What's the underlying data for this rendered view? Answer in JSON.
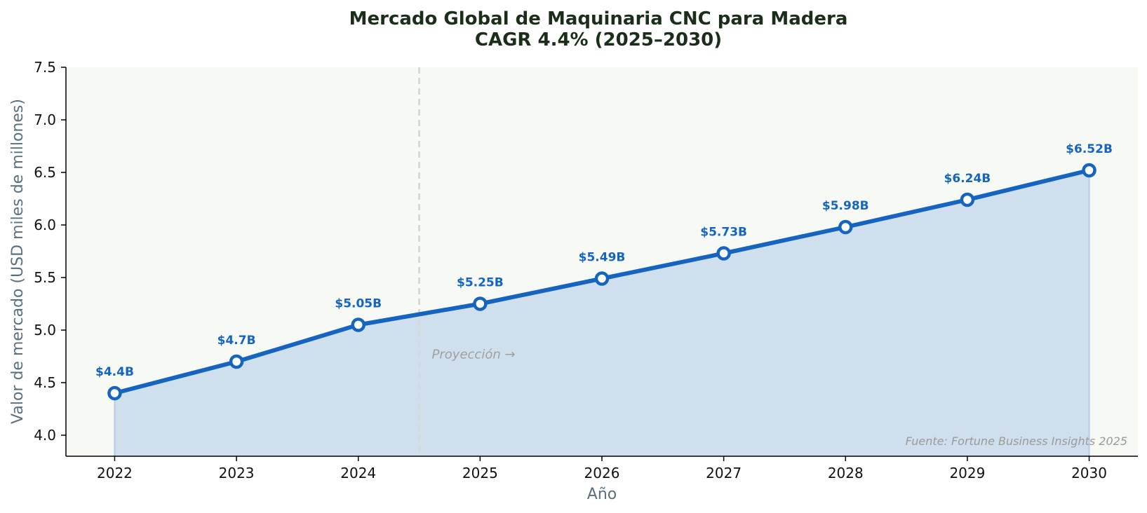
{
  "chart_data": {
    "type": "area",
    "title_line1": "Mercado Global de Maquinaria CNC para Madera",
    "title_line2": "CAGR 4.4% (2025–2030)",
    "xlabel": "Año",
    "ylabel": "Valor de mercado (USD miles de millones)",
    "x": [
      2022,
      2023,
      2024,
      2025,
      2026,
      2027,
      2028,
      2029,
      2030
    ],
    "values": [
      4.4,
      4.7,
      5.05,
      5.25,
      5.49,
      5.73,
      5.98,
      6.24,
      6.52
    ],
    "data_labels": [
      "$4.4B",
      "$4.7B",
      "$5.05B",
      "$5.25B",
      "$5.49B",
      "$5.73B",
      "$5.98B",
      "$6.24B",
      "$6.52B"
    ],
    "xlim": [
      2021.6,
      2030.4
    ],
    "ylim": [
      3.8,
      7.5
    ],
    "yticks": [
      4.0,
      4.5,
      5.0,
      5.5,
      6.0,
      6.5,
      7.0,
      7.5
    ],
    "ytick_labels": [
      "4.0",
      "4.5",
      "5.0",
      "5.5",
      "6.0",
      "6.5",
      "7.0",
      "7.5"
    ],
    "xtick_labels": [
      "2022",
      "2023",
      "2024",
      "2025",
      "2026",
      "2027",
      "2028",
      "2029",
      "2030"
    ],
    "projection_start_x": 2024.5,
    "projection_label": "Proyección →",
    "source_note": "Fuente: Fortune Business Insights 2025",
    "grid": false,
    "colors": {
      "line": "#1565c0",
      "fill": "#cfdfed",
      "plot_bg": "#f7f9f5",
      "divider": "#d8d8d8"
    }
  }
}
